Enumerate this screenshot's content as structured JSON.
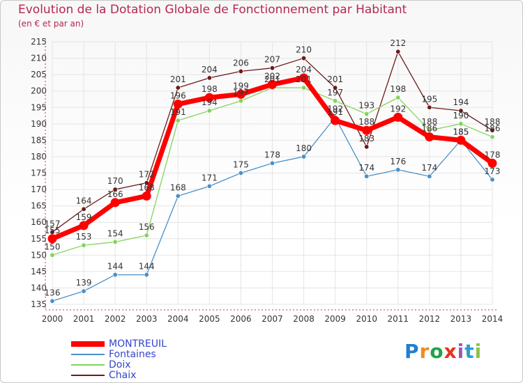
{
  "title": "Evolution de la Dotation Globale de Fonctionnement par Habitant",
  "subtitle": "(en € et par an)",
  "logo": {
    "text": "Proxiti",
    "letters": [
      "P",
      "r",
      "o",
      "x",
      "i",
      "t",
      "i"
    ],
    "colors": [
      "#1f7fd0",
      "#f28c1a",
      "#1fa24a",
      "#e8321e",
      "#9b59b6",
      "#2a9fd6",
      "#8bc34a"
    ]
  },
  "chart_data": {
    "type": "line",
    "title": "Evolution de la Dotation Globale de Fonctionnement par Habitant",
    "subtitle": "(en € et par an)",
    "x": [
      2000,
      2001,
      2002,
      2003,
      2004,
      2005,
      2006,
      2007,
      2008,
      2009,
      2010,
      2011,
      2012,
      2013,
      2014
    ],
    "xlabels": [
      "2000",
      "2001",
      "2002",
      "2003",
      "2004",
      "2005",
      "2006",
      "2007",
      "2008",
      "2009",
      "2010",
      "2011",
      "2012",
      "2013",
      "2014"
    ],
    "ylim": [
      135,
      215
    ],
    "yticks": [
      135,
      140,
      145,
      150,
      155,
      160,
      165,
      170,
      175,
      180,
      185,
      190,
      195,
      200,
      205,
      210,
      215
    ],
    "grid": true,
    "legend_position": "bottom-left",
    "series": [
      {
        "name": "Chaix",
        "color": "#6b1a1a",
        "values": [
          157,
          164,
          170,
          172,
          201,
          204,
          206,
          207,
          210,
          201,
          183,
          212,
          195,
          194,
          188
        ]
      },
      {
        "name": "Doix",
        "color": "#82d45a",
        "values": [
          150,
          153,
          154,
          156,
          191,
          194,
          197,
          201,
          201,
          197,
          193,
          198,
          188,
          190,
          186
        ]
      },
      {
        "name": "Fontaines",
        "color": "#4a90c8",
        "values": [
          136,
          139,
          144,
          144,
          168,
          171,
          175,
          178,
          180,
          192,
          174,
          176,
          174,
          185,
          173
        ]
      },
      {
        "name": "MONTREUIL",
        "color": "#ff0000",
        "values": [
          155,
          159,
          166,
          168,
          196,
          198,
          199,
          202,
          204,
          191,
          188,
          192,
          186,
          185,
          178
        ]
      }
    ],
    "legend": [
      {
        "name": "MONTREUIL",
        "color": "#ff0000"
      },
      {
        "name": "Fontaines",
        "color": "#4a90c8"
      },
      {
        "name": "Doix",
        "color": "#82d45a"
      },
      {
        "name": "Chaix",
        "color": "#6b1a1a"
      }
    ]
  }
}
